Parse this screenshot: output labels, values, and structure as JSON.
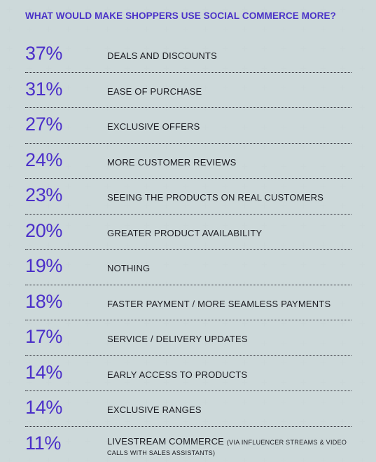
{
  "chart_data": {
    "type": "table",
    "title": "WHAT WOULD MAKE SHOPPERS USE SOCIAL COMMERCE MORE?",
    "rows": [
      {
        "value": "37%",
        "label": "DEALS AND DISCOUNTS",
        "note": ""
      },
      {
        "value": "31%",
        "label": "EASE OF PURCHASE",
        "note": ""
      },
      {
        "value": "27%",
        "label": "EXCLUSIVE OFFERS",
        "note": ""
      },
      {
        "value": "24%",
        "label": "MORE CUSTOMER REVIEWS",
        "note": ""
      },
      {
        "value": "23%",
        "label": "SEEING THE PRODUCTS ON REAL CUSTOMERS",
        "note": ""
      },
      {
        "value": "20%",
        "label": "GREATER PRODUCT AVAILABILITY",
        "note": ""
      },
      {
        "value": "19%",
        "label": "NOTHING",
        "note": ""
      },
      {
        "value": "18%",
        "label": "FASTER PAYMENT / MORE SEAMLESS PAYMENTS",
        "note": ""
      },
      {
        "value": "17%",
        "label": "SERVICE / DELIVERY UPDATES",
        "note": ""
      },
      {
        "value": "14%",
        "label": "EARLY ACCESS TO PRODUCTS",
        "note": ""
      },
      {
        "value": "14%",
        "label": "EXCLUSIVE RANGES",
        "note": ""
      },
      {
        "value": "11%",
        "label": "LIVESTREAM COMMERCE",
        "note": "(VIA INFLUENCER STREAMS & VIDEO CALLS WITH SALES ASSISTANTS)"
      }
    ]
  },
  "colors": {
    "background": "#dbe6e6",
    "accent": "#4b2fc9",
    "text": "#1c1c22"
  }
}
